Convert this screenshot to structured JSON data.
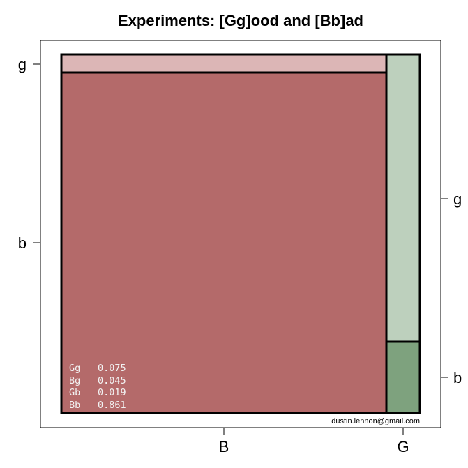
{
  "chart_data": {
    "type": "mosaic",
    "title": "Experiments: [Gg]ood and [Bb]ad",
    "x_categories": [
      "B",
      "G"
    ],
    "left_y_categories": [
      "g",
      "b"
    ],
    "right_y_categories": [
      "g",
      "b"
    ],
    "cells": [
      {
        "key": "Gg",
        "value": 0.075,
        "color": "#bdd0bd"
      },
      {
        "key": "Bg",
        "value": 0.045,
        "color": "#dcb6b6"
      },
      {
        "key": "Gb",
        "value": 0.019,
        "color": "#7ea27e"
      },
      {
        "key": "Bb",
        "value": 0.861,
        "color": "#b46a6a"
      }
    ],
    "legend_entries": [
      {
        "key": "Gg",
        "value": "0.075"
      },
      {
        "key": "Bg",
        "value": "0.045"
      },
      {
        "key": "Gb",
        "value": "0.019"
      },
      {
        "key": "Bb",
        "value": "0.861"
      }
    ],
    "credit": "dustin.lennon@gmail.com"
  }
}
